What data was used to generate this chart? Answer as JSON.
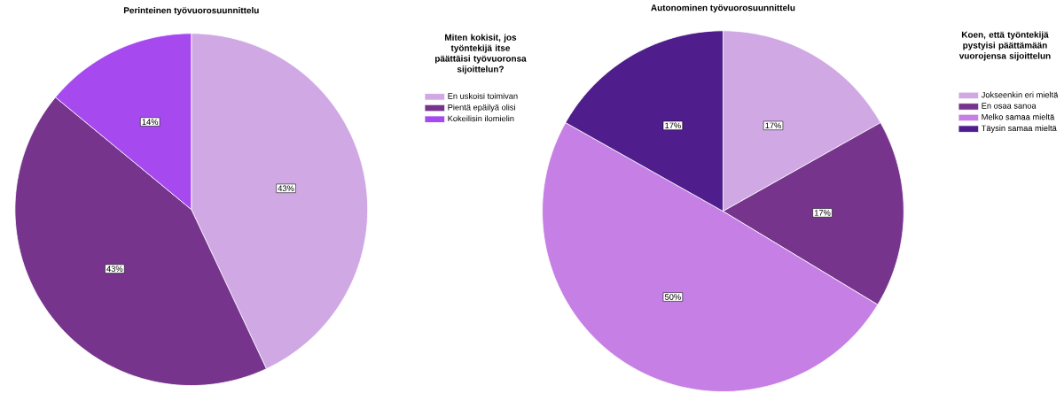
{
  "chart_data": [
    {
      "type": "pie",
      "title": "Perinteinen työvuorosuunnittelu",
      "legend_title": "Miten kokisit, jos työntekijä itse päättäisi työvuoronsa sijoittelun?",
      "legend": "right",
      "categories": [
        "En uskoisi toimivan",
        "Pientä epäilyä olisi",
        "Kokeilisin ilomielin"
      ],
      "values": [
        43,
        43,
        14
      ],
      "value_labels": [
        "43%",
        "43%",
        "14%"
      ],
      "colors": [
        "#cfa8e4",
        "#76348c",
        "#a64af0"
      ]
    },
    {
      "type": "pie",
      "title": "Autonominen työvuorosuunnittelu",
      "legend_title": "Koen, että työntekijä pystyisi päättämään vuorojensa sijoittelun",
      "legend": "right",
      "categories": [
        "Jokseenkin eri mieltä",
        "En osaa sanoa",
        "Melko samaa mieltä",
        "Täysin samaa mieltä"
      ],
      "values": [
        17,
        17,
        50,
        17
      ],
      "value_labels": [
        "17%",
        "17%",
        "50%",
        "17%"
      ],
      "colors": [
        "#cfa8e4",
        "#76348c",
        "#c67fe4",
        "#4f1d8c"
      ]
    }
  ]
}
